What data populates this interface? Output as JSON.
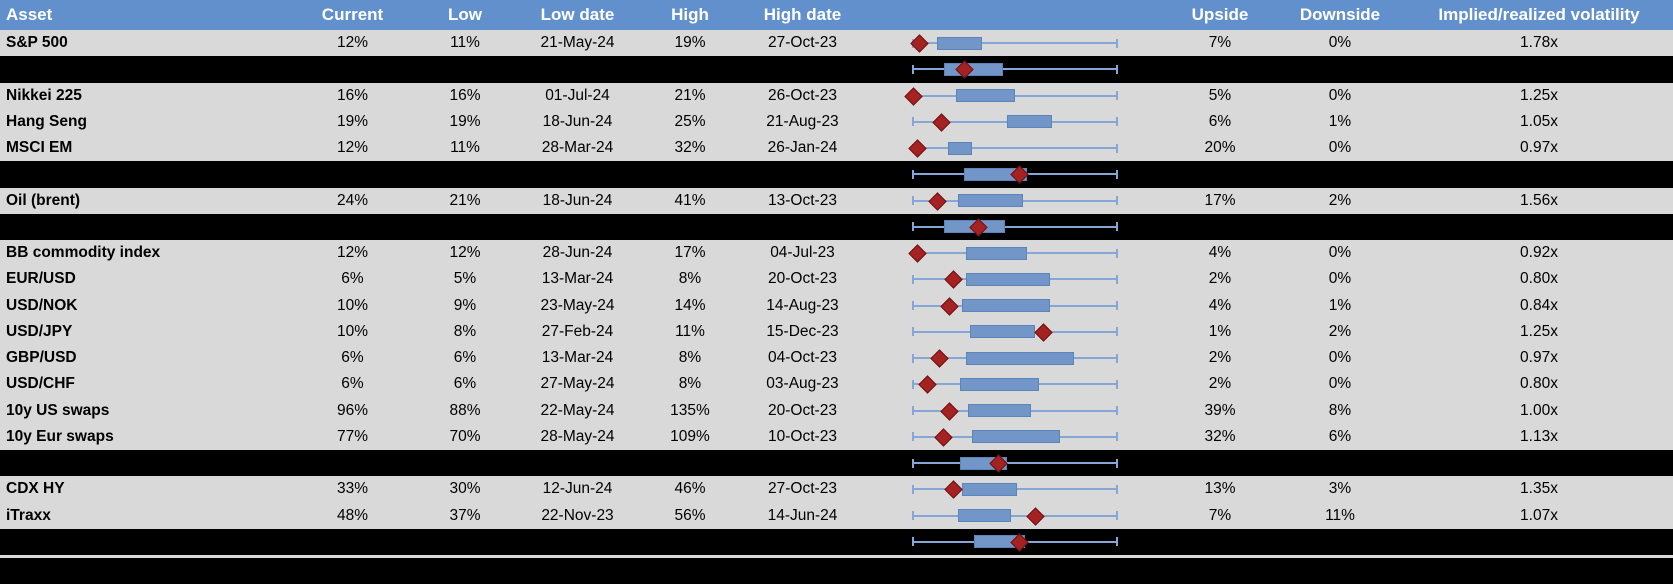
{
  "header": {
    "columns": [
      "Asset",
      "Current",
      "Low",
      "Low date",
      "High",
      "High date",
      "Upside",
      "Downside",
      "Implied/realized volatility"
    ]
  },
  "colors": {
    "header_bg": "#6190CC",
    "header_text": "#FFFFFF",
    "row_bg": "#D9D9D9",
    "summary_bg": "#000000",
    "box_fill": "#7296C8",
    "box_border": "#5C84B9",
    "whisker": "#84A7D8",
    "marker": "#A42222",
    "marker_border": "#701010"
  },
  "chart_data": {
    "type": "boxplot",
    "orientation": "horizontal",
    "note": "Each row shows a horizontal box-whisker spanning the asset's volatility range (whiskers at range min/max, normalized 0-1) with a dark-red diamond marking the current level. Black rows are unlabeled group summary box plots.",
    "range_normalized": [
      0,
      1
    ],
    "rows": [
      {
        "kind": "asset",
        "asset": "S&P 500",
        "current": "12%",
        "low": "11%",
        "low_date": "21-May-24",
        "high": "19%",
        "high_date": "27-Oct-23",
        "upside": "7%",
        "downside": "0%",
        "implied_realized_vol": "1.78x",
        "box": {
          "whisker_min": 0,
          "q1": 0.12,
          "q3": 0.34,
          "whisker_max": 1,
          "marker": 0.03
        }
      },
      {
        "kind": "summary",
        "box": {
          "whisker_min": 0,
          "q1": 0.15,
          "q3": 0.44,
          "whisker_max": 1,
          "marker": 0.25
        }
      },
      {
        "kind": "asset",
        "asset": "Nikkei 225",
        "current": "16%",
        "low": "16%",
        "low_date": "01-Jul-24",
        "high": "21%",
        "high_date": "26-Oct-23",
        "upside": "5%",
        "downside": "0%",
        "implied_realized_vol": "1.25x",
        "box": {
          "whisker_min": 0,
          "q1": 0.21,
          "q3": 0.5,
          "whisker_max": 1,
          "marker": 0.0
        }
      },
      {
        "kind": "asset",
        "asset": "Hang Seng",
        "current": "19%",
        "low": "19%",
        "low_date": "18-Jun-24",
        "high": "25%",
        "high_date": "21-Aug-23",
        "upside": "6%",
        "downside": "1%",
        "implied_realized_vol": "1.05x",
        "box": {
          "whisker_min": 0,
          "q1": 0.46,
          "q3": 0.68,
          "whisker_max": 1,
          "marker": 0.14
        }
      },
      {
        "kind": "asset",
        "asset": "MSCI EM",
        "current": "12%",
        "low": "11%",
        "low_date": "28-Mar-24",
        "high": "32%",
        "high_date": "26-Jan-24",
        "upside": "20%",
        "downside": "0%",
        "implied_realized_vol": "0.97x",
        "box": {
          "whisker_min": 0,
          "q1": 0.17,
          "q3": 0.29,
          "whisker_max": 1,
          "marker": 0.02
        }
      },
      {
        "kind": "summary",
        "box": {
          "whisker_min": 0,
          "q1": 0.25,
          "q3": 0.56,
          "whisker_max": 1,
          "marker": 0.52
        }
      },
      {
        "kind": "asset",
        "asset": "Oil (brent)",
        "current": "24%",
        "low": "21%",
        "low_date": "18-Jun-24",
        "high": "41%",
        "high_date": "13-Oct-23",
        "upside": "17%",
        "downside": "2%",
        "implied_realized_vol": "1.56x",
        "box": {
          "whisker_min": 0,
          "q1": 0.22,
          "q3": 0.54,
          "whisker_max": 1,
          "marker": 0.12
        }
      },
      {
        "kind": "summary",
        "box": {
          "whisker_min": 0,
          "q1": 0.15,
          "q3": 0.45,
          "whisker_max": 1,
          "marker": 0.32
        }
      },
      {
        "kind": "asset",
        "asset": "BB commodity index",
        "current": "12%",
        "low": "12%",
        "low_date": "28-Jun-24",
        "high": "17%",
        "high_date": "04-Jul-23",
        "upside": "4%",
        "downside": "0%",
        "implied_realized_vol": "0.92x",
        "box": {
          "whisker_min": 0,
          "q1": 0.26,
          "q3": 0.56,
          "whisker_max": 1,
          "marker": 0.02
        }
      },
      {
        "kind": "asset",
        "asset": "EUR/USD",
        "current": "6%",
        "low": "5%",
        "low_date": "13-Mar-24",
        "high": "8%",
        "high_date": "20-Oct-23",
        "upside": "2%",
        "downside": "0%",
        "implied_realized_vol": "0.80x",
        "box": {
          "whisker_min": 0,
          "q1": 0.26,
          "q3": 0.67,
          "whisker_max": 1,
          "marker": 0.2
        }
      },
      {
        "kind": "asset",
        "asset": "USD/NOK",
        "current": "10%",
        "low": "9%",
        "low_date": "23-May-24",
        "high": "14%",
        "high_date": "14-Aug-23",
        "upside": "4%",
        "downside": "1%",
        "implied_realized_vol": "0.84x",
        "box": {
          "whisker_min": 0,
          "q1": 0.24,
          "q3": 0.67,
          "whisker_max": 1,
          "marker": 0.18
        }
      },
      {
        "kind": "asset",
        "asset": "USD/JPY",
        "current": "10%",
        "low": "8%",
        "low_date": "27-Feb-24",
        "high": "11%",
        "high_date": "15-Dec-23",
        "upside": "1%",
        "downside": "2%",
        "implied_realized_vol": "1.25x",
        "box": {
          "whisker_min": 0,
          "q1": 0.28,
          "q3": 0.6,
          "whisker_max": 1,
          "marker": 0.64
        }
      },
      {
        "kind": "asset",
        "asset": "GBP/USD",
        "current": "6%",
        "low": "6%",
        "low_date": "13-Mar-24",
        "high": "8%",
        "high_date": "04-Oct-23",
        "upside": "2%",
        "downside": "0%",
        "implied_realized_vol": "0.97x",
        "box": {
          "whisker_min": 0,
          "q1": 0.26,
          "q3": 0.79,
          "whisker_max": 1,
          "marker": 0.13
        }
      },
      {
        "kind": "asset",
        "asset": "USD/CHF",
        "current": "6%",
        "low": "6%",
        "low_date": "27-May-24",
        "high": "8%",
        "high_date": "03-Aug-23",
        "upside": "2%",
        "downside": "0%",
        "implied_realized_vol": "0.80x",
        "box": {
          "whisker_min": 0,
          "q1": 0.23,
          "q3": 0.62,
          "whisker_max": 1,
          "marker": 0.07
        }
      },
      {
        "kind": "asset",
        "asset": "10y US swaps",
        "current": "96%",
        "low": "88%",
        "low_date": "22-May-24",
        "high": "135%",
        "high_date": "20-Oct-23",
        "upside": "39%",
        "downside": "8%",
        "implied_realized_vol": "1.00x",
        "box": {
          "whisker_min": 0,
          "q1": 0.27,
          "q3": 0.58,
          "whisker_max": 1,
          "marker": 0.18
        }
      },
      {
        "kind": "asset",
        "asset": "10y Eur swaps",
        "current": "77%",
        "low": "70%",
        "low_date": "28-May-24",
        "high": "109%",
        "high_date": "10-Oct-23",
        "upside": "32%",
        "downside": "6%",
        "implied_realized_vol": "1.13x",
        "box": {
          "whisker_min": 0,
          "q1": 0.29,
          "q3": 0.72,
          "whisker_max": 1,
          "marker": 0.15
        }
      },
      {
        "kind": "summary",
        "box": {
          "whisker_min": 0,
          "q1": 0.23,
          "q3": 0.46,
          "whisker_max": 1,
          "marker": 0.42
        }
      },
      {
        "kind": "asset",
        "asset": "CDX HY",
        "current": "33%",
        "low": "30%",
        "low_date": "12-Jun-24",
        "high": "46%",
        "high_date": "27-Oct-23",
        "upside": "13%",
        "downside": "3%",
        "implied_realized_vol": "1.35x",
        "box": {
          "whisker_min": 0,
          "q1": 0.24,
          "q3": 0.51,
          "whisker_max": 1,
          "marker": 0.2
        }
      },
      {
        "kind": "asset",
        "asset": "iTraxx",
        "current": "48%",
        "low": "37%",
        "low_date": "22-Nov-23",
        "high": "56%",
        "high_date": "14-Jun-24",
        "upside": "7%",
        "downside": "11%",
        "implied_realized_vol": "1.07x",
        "box": {
          "whisker_min": 0,
          "q1": 0.22,
          "q3": 0.48,
          "whisker_max": 1,
          "marker": 0.6
        }
      },
      {
        "kind": "summary",
        "box": {
          "whisker_min": 0,
          "q1": 0.3,
          "q3": 0.55,
          "whisker_max": 1,
          "marker": 0.52
        }
      }
    ]
  }
}
